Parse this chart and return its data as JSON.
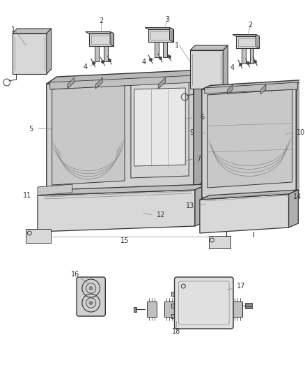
{
  "bg_color": "#ffffff",
  "lc": "#333333",
  "lc_light": "#888888",
  "label_fs": 7,
  "fig_w": 4.38,
  "fig_h": 5.33,
  "dpi": 100
}
